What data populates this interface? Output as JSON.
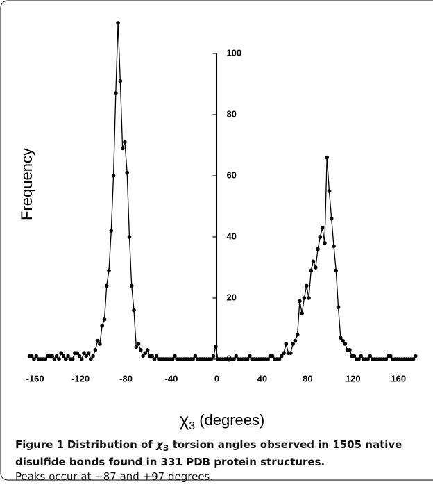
{
  "chart_data": {
    "type": "line",
    "x_label": [
      "χ",
      "3",
      "(degrees)"
    ],
    "y_label": "Frequency",
    "x": [
      -165,
      -163,
      -161,
      -159,
      -157,
      -155,
      -153,
      -151,
      -149,
      -147,
      -145,
      -143,
      -141,
      -139,
      -137,
      -135,
      -133,
      -131,
      -129,
      -127,
      -125,
      -123,
      -121,
      -119,
      -117,
      -115,
      -113,
      -111,
      -109,
      -107,
      -105,
      -103,
      -101,
      -99,
      -97,
      -95,
      -93,
      -91,
      -89,
      -87,
      -85,
      -83,
      -81,
      -79,
      -77,
      -75,
      -73,
      -71,
      -69,
      -67,
      -65,
      -63,
      -61,
      -59,
      -57,
      -55,
      -53,
      -51,
      -49,
      -47,
      -45,
      -43,
      -41,
      -39,
      -37,
      -35,
      -33,
      -31,
      -29,
      -27,
      -25,
      -23,
      -21,
      -19,
      -17,
      -15,
      -13,
      -11,
      -9,
      -7,
      -5,
      -3,
      -1,
      1,
      3,
      5,
      7,
      9,
      11,
      13,
      15,
      17,
      19,
      21,
      23,
      25,
      27,
      29,
      31,
      33,
      35,
      37,
      39,
      41,
      43,
      45,
      47,
      49,
      51,
      53,
      55,
      57,
      59,
      61,
      63,
      65,
      67,
      69,
      71,
      73,
      75,
      77,
      79,
      81,
      83,
      85,
      87,
      89,
      91,
      93,
      95,
      97,
      99,
      101,
      103,
      105,
      107,
      109,
      111,
      113,
      115,
      117,
      119,
      121,
      123,
      125,
      127,
      129,
      131,
      133,
      135,
      137,
      139,
      141,
      143,
      145,
      147,
      149,
      151,
      153,
      155,
      157,
      159,
      161,
      163,
      165,
      167,
      169,
      171,
      173,
      175
    ],
    "series": [
      {
        "color": "#000000",
        "values": [
          1,
          1,
          0,
          1,
          0,
          0,
          0,
          0,
          1,
          1,
          1,
          0,
          1,
          0,
          2,
          1,
          0,
          1,
          0,
          0,
          2,
          2,
          1,
          0,
          2,
          1,
          2,
          0,
          1,
          3,
          6,
          5,
          11,
          13,
          24,
          29,
          42,
          60,
          87,
          110,
          91,
          69,
          71,
          61,
          40,
          24,
          16,
          4,
          5,
          3,
          1,
          2,
          3,
          1,
          1,
          0,
          1,
          0,
          0,
          0,
          0,
          0,
          0,
          0,
          1,
          0,
          0,
          0,
          0,
          0,
          0,
          0,
          0,
          1,
          0,
          0,
          0,
          0,
          0,
          0,
          0,
          1,
          4,
          0,
          0,
          0,
          0,
          0,
          0,
          0,
          0,
          1,
          0,
          0,
          0,
          0,
          0,
          1,
          0,
          0,
          0,
          0,
          0,
          0,
          0,
          0,
          1,
          1,
          0,
          0,
          0,
          1,
          2,
          5,
          2,
          2,
          5,
          6,
          8,
          19,
          15,
          20,
          24,
          20,
          29,
          32,
          30,
          36,
          40,
          43,
          38,
          66,
          55,
          46,
          37,
          29,
          17,
          7,
          6,
          5,
          3,
          3,
          1,
          1,
          0,
          0,
          1,
          0,
          0,
          0,
          1,
          0,
          0,
          0,
          0,
          0,
          0,
          0,
          1,
          1,
          0,
          0,
          0,
          0,
          0,
          0,
          0,
          0,
          0,
          0,
          1
        ]
      }
    ],
    "xlim": [
      -172,
      180
    ],
    "ylim": [
      0,
      100
    ],
    "xticks": [
      -160,
      -120,
      -80,
      -40,
      0,
      40,
      80,
      120,
      160
    ],
    "yticks": [
      0,
      20,
      40,
      60,
      80,
      100
    ],
    "grid": false
  },
  "caption": {
    "label": "Figure 1",
    "title_parts": [
      "Distribution of ",
      "χ",
      "3",
      " torsion angles observed in 1505 native disulfide bonds found in 331 PDB protein structures."
    ],
    "text": "Peaks occur at −87 and +97 degrees."
  }
}
